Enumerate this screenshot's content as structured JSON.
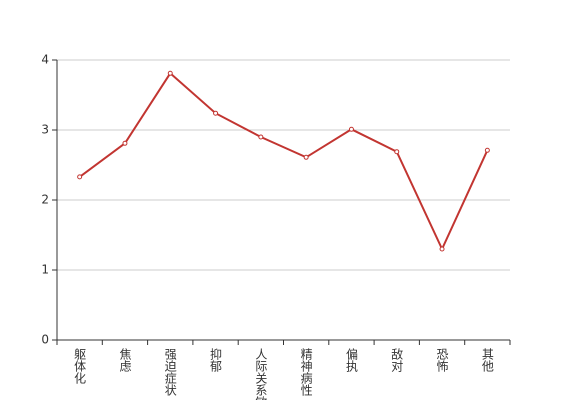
{
  "chart_data": {
    "type": "line",
    "categories": [
      "躯体化",
      "焦虑",
      "强迫症状",
      "抑郁",
      "人际关系敏感",
      "精神病性",
      "偏执",
      "敌对",
      "恐怖",
      "其他"
    ],
    "values": [
      2.33,
      2.81,
      3.81,
      3.24,
      2.9,
      2.61,
      3.01,
      2.69,
      1.3,
      2.71
    ],
    "color": "#c23531",
    "ylim": [
      0,
      4
    ],
    "yticks": [
      0,
      1,
      2,
      3,
      4
    ],
    "grid": true
  }
}
